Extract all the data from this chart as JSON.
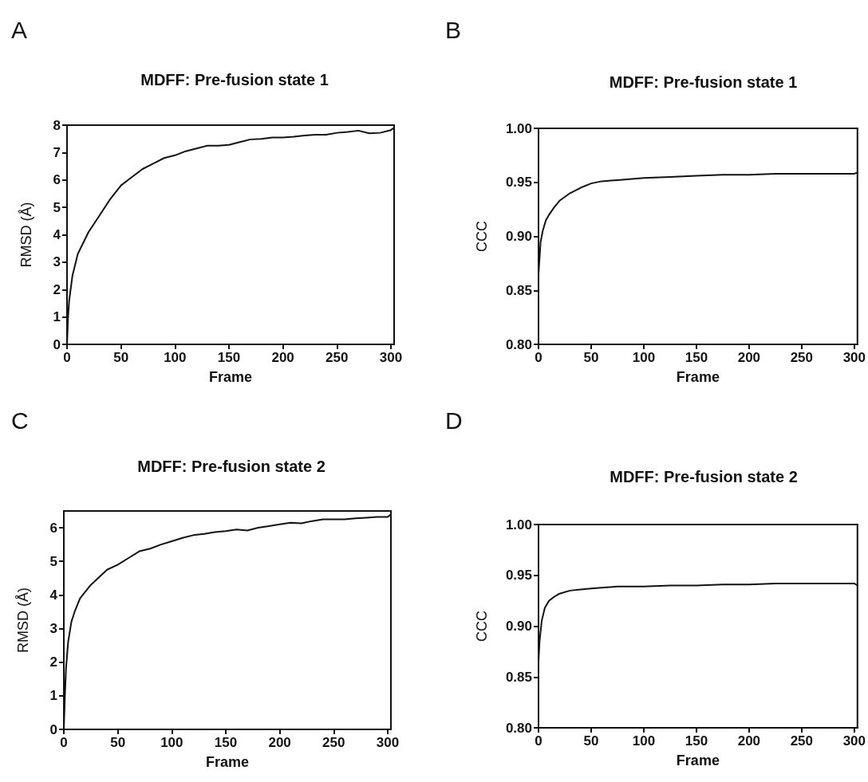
{
  "chart_data": [
    {
      "type": "line",
      "title": "MDFF: Pre-fusion state 1",
      "xlabel": "Frame",
      "ylabel": "RMSD (Å)",
      "annotations": [
        "A"
      ],
      "marker": "none",
      "line_style": "solid",
      "xlim": [
        0,
        303
      ],
      "xticks": [
        0,
        50,
        100,
        150,
        200,
        250,
        300
      ],
      "ylim": [
        0,
        8
      ],
      "yticks": [
        0,
        1,
        2,
        3,
        4,
        5,
        6,
        7,
        8
      ],
      "series": [
        {
          "color": "#111111",
          "x": [
            0,
            1,
            2,
            5,
            10,
            20,
            30,
            40,
            50,
            60,
            70,
            80,
            90,
            100,
            110,
            120,
            130,
            140,
            150,
            160,
            170,
            180,
            190,
            200,
            210,
            220,
            230,
            240,
            250,
            260,
            270,
            280,
            290,
            300,
            303
          ],
          "values": [
            0,
            1,
            1.6,
            2.5,
            3.3,
            4.1,
            4.7,
            5.3,
            5.8,
            6.1,
            6.4,
            6.6,
            6.8,
            6.9,
            7.05,
            7.15,
            7.25,
            7.25,
            7.28,
            7.38,
            7.48,
            7.5,
            7.55,
            7.55,
            7.58,
            7.62,
            7.65,
            7.65,
            7.72,
            7.75,
            7.8,
            7.7,
            7.72,
            7.82,
            7.9
          ]
        }
      ]
    },
    {
      "type": "line",
      "title": "MDFF: Pre-fusion state 1",
      "xlabel": "Frame",
      "ylabel": "CCC",
      "annotations": [
        "B"
      ],
      "marker": "none",
      "line_style": "solid",
      "xlim": [
        0,
        303
      ],
      "xticks": [
        0,
        50,
        100,
        150,
        200,
        250,
        300
      ],
      "ylim": [
        0.8,
        1
      ],
      "yticks": [
        {
          "value": 0.8,
          "label": "0.80"
        },
        {
          "value": 0.85,
          "label": "0.85"
        },
        {
          "value": 0.9,
          "label": "0.90"
        },
        {
          "value": 0.95,
          "label": "0.95"
        },
        {
          "value": 1,
          "label": "1.00"
        }
      ],
      "series": [
        {
          "color": "#111111",
          "x": [
            0,
            1,
            2,
            4,
            7,
            10,
            15,
            20,
            30,
            40,
            50,
            60,
            75,
            100,
            125,
            150,
            175,
            200,
            225,
            250,
            275,
            300,
            303
          ],
          "values": [
            0.865,
            0.88,
            0.895,
            0.905,
            0.915,
            0.92,
            0.927,
            0.933,
            0.94,
            0.945,
            0.949,
            0.951,
            0.952,
            0.954,
            0.955,
            0.956,
            0.957,
            0.957,
            0.958,
            0.958,
            0.958,
            0.958,
            0.959
          ]
        }
      ]
    },
    {
      "type": "line",
      "title": "MDFF: Pre-fusion state 2",
      "xlabel": "Frame",
      "ylabel": "RMSD (Å)",
      "annotations": [
        "C"
      ],
      "marker": "none",
      "line_style": "solid",
      "xlim": [
        0,
        303
      ],
      "xticks": [
        0,
        50,
        100,
        150,
        200,
        250,
        300
      ],
      "ylim": [
        0,
        6.5
      ],
      "yticks": [
        0,
        1,
        2,
        3,
        4,
        5,
        6
      ],
      "series": [
        {
          "color": "#111111",
          "x": [
            0,
            1,
            2,
            4,
            7,
            10,
            15,
            20,
            25,
            30,
            40,
            50,
            60,
            70,
            80,
            90,
            100,
            110,
            120,
            130,
            140,
            150,
            160,
            170,
            180,
            190,
            200,
            210,
            220,
            230,
            240,
            250,
            260,
            270,
            280,
            290,
            300,
            303
          ],
          "values": [
            0,
            1,
            1.8,
            2.6,
            3.2,
            3.5,
            3.9,
            4.1,
            4.3,
            4.45,
            4.75,
            4.9,
            5.1,
            5.3,
            5.38,
            5.5,
            5.6,
            5.7,
            5.78,
            5.82,
            5.87,
            5.9,
            5.95,
            5.92,
            6,
            6.05,
            6.1,
            6.15,
            6.13,
            6.2,
            6.25,
            6.25,
            6.25,
            6.28,
            6.3,
            6.32,
            6.32,
            6.4
          ]
        }
      ]
    },
    {
      "type": "line",
      "title": "MDFF: Pre-fusion state 2",
      "xlabel": "Frame",
      "ylabel": "CCC",
      "annotations": [
        "D"
      ],
      "marker": "none",
      "line_style": "solid",
      "xlim": [
        0,
        303
      ],
      "xticks": [
        0,
        50,
        100,
        150,
        200,
        250,
        300
      ],
      "ylim": [
        0.8,
        1
      ],
      "yticks": [
        {
          "value": 0.8,
          "label": "0.80"
        },
        {
          "value": 0.85,
          "label": "0.85"
        },
        {
          "value": 0.9,
          "label": "0.90"
        },
        {
          "value": 0.95,
          "label": "0.95"
        },
        {
          "value": 1,
          "label": "1.00"
        }
      ],
      "series": [
        {
          "color": "#111111",
          "x": [
            0,
            1,
            3,
            6,
            10,
            15,
            20,
            30,
            40,
            50,
            75,
            100,
            125,
            150,
            175,
            200,
            225,
            250,
            275,
            300,
            303
          ],
          "values": [
            0.865,
            0.885,
            0.905,
            0.918,
            0.925,
            0.929,
            0.932,
            0.935,
            0.936,
            0.937,
            0.939,
            0.939,
            0.94,
            0.94,
            0.941,
            0.941,
            0.942,
            0.942,
            0.942,
            0.942,
            0.94
          ]
        }
      ]
    }
  ]
}
